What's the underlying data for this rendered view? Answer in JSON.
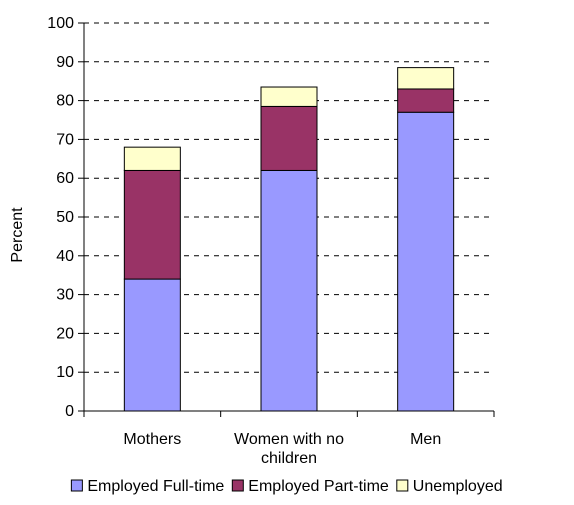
{
  "chart_data": {
    "type": "bar",
    "stacked": true,
    "categories": [
      "Mothers",
      "Women with no children",
      "Men"
    ],
    "category_label_lines": [
      [
        "Mothers"
      ],
      [
        "Women with no",
        "children"
      ],
      [
        "Men"
      ]
    ],
    "series": [
      {
        "name": "Employed Full-time",
        "values": [
          34,
          62,
          77
        ],
        "color": "#9999ff"
      },
      {
        "name": "Employed Part-time",
        "values": [
          28,
          16.5,
          6
        ],
        "color": "#993366"
      },
      {
        "name": "Unemployed",
        "values": [
          6,
          5,
          5.5
        ],
        "color": "#ffffcc"
      }
    ],
    "ylabel": "Percent",
    "xlabel": "",
    "title": "",
    "ylim": [
      0,
      100
    ],
    "yticks": [
      0,
      10,
      20,
      30,
      40,
      50,
      60,
      70,
      80,
      90,
      100
    ],
    "grid": "horizontal-dashed",
    "legend_position": "bottom"
  }
}
